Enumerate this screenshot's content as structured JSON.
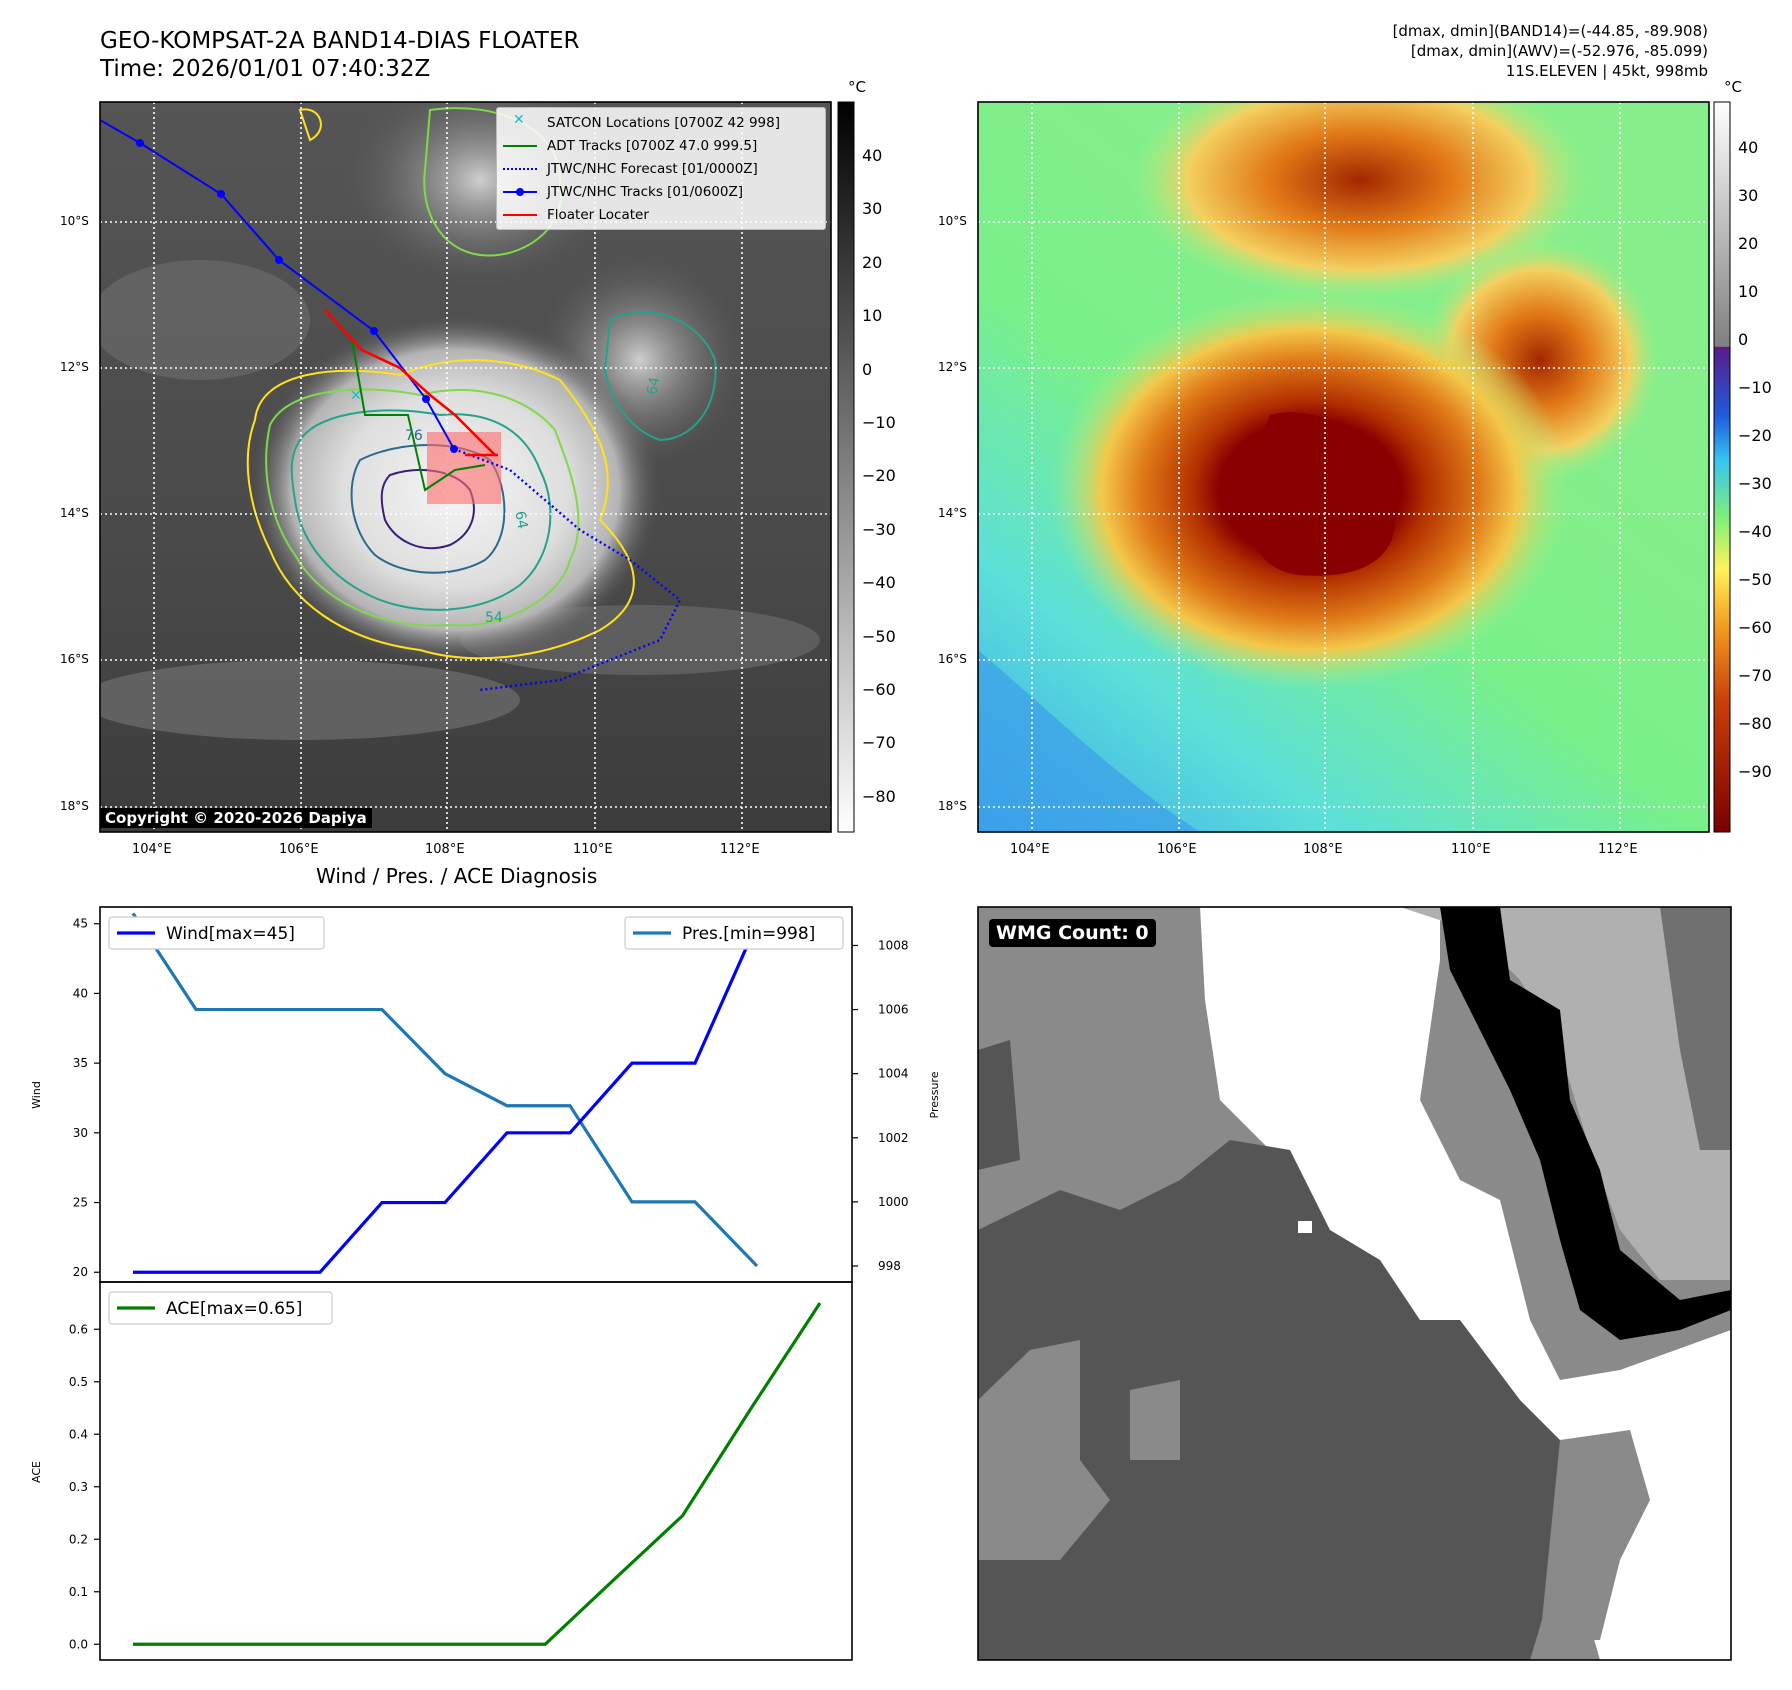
{
  "header": {
    "title": "GEO-KOMPSAT-2A BAND14-DIAS FLOATER",
    "time": "Time: 2026/01/01 07:40:32Z",
    "stats1": "[dmax, dmin](BAND14)=(-44.85, -89.908)",
    "stats2": "[dmax, dmin](AWV)=(-52.976, -85.099)",
    "stats3": "11S.ELEVEN | 45kt, 998mb"
  },
  "copyright": "Copyright © 2020-2026 Dapiya",
  "map": {
    "lon_labels": [
      "104°E",
      "106°E",
      "108°E",
      "110°E",
      "112°E"
    ],
    "lat_labels": [
      "10°S",
      "12°S",
      "14°S",
      "16°S",
      "18°S"
    ],
    "legend": [
      {
        "label": "SATCON Locations [0700Z 42 998]",
        "kind": "x",
        "color": "#17becf"
      },
      {
        "label": "ADT Tracks [0700Z 47.0 999.5]",
        "kind": "line",
        "color": "#008000"
      },
      {
        "label": "JTWC/NHC Forecast [01/0000Z]",
        "kind": "dot",
        "color": "#0000ff"
      },
      {
        "label": "JTWC/NHC Tracks [01/0600Z]",
        "kind": "marker",
        "color": "#0000ff"
      },
      {
        "label": "Floater Locater",
        "kind": "line",
        "color": "#ff0000"
      }
    ],
    "contour_labels": [
      "54",
      "64",
      "76",
      "64",
      "54"
    ]
  },
  "colorbars": {
    "unit": "°C",
    "ir_ticks": [
      "40",
      "30",
      "20",
      "10",
      "0",
      "−10",
      "−20",
      "−30",
      "−40",
      "−50",
      "−60",
      "−70",
      "−80"
    ],
    "enh_ticks": [
      "40",
      "30",
      "20",
      "10",
      "0",
      "−10",
      "−20",
      "−30",
      "−40",
      "−50",
      "−60",
      "−70",
      "−80",
      "−90"
    ]
  },
  "wmg": {
    "label": "WMG Count: 0"
  },
  "chart_data": [
    {
      "type": "line",
      "title": "Wind / Pres. / ACE Diagnosis",
      "xlabel": "",
      "ylabel": "Wind",
      "ylabel_right": "Pressure",
      "series": [
        {
          "name": "Wind[max=45]",
          "axis": "left",
          "color": "#0000ff",
          "values": [
            20,
            20,
            20,
            20,
            25,
            25,
            30,
            30,
            35,
            35,
            45,
            45
          ]
        },
        {
          "name": "Pres.[min=998]",
          "axis": "right",
          "color": "#1f77b4",
          "values": [
            1009,
            1006,
            1006,
            1006,
            1006,
            1004,
            1003,
            1003,
            1000,
            1000,
            998,
            null
          ]
        }
      ],
      "ylim": [
        19.3,
        46.2
      ],
      "ylim_right": [
        997.5,
        1009.2
      ],
      "yticks": [
        20,
        25,
        30,
        35,
        40,
        45
      ],
      "yticks_right": [
        998,
        1000,
        1002,
        1004,
        1006,
        1008
      ],
      "grid": false,
      "legend": "top-left, top-right"
    },
    {
      "type": "line",
      "title": "",
      "xlabel": "",
      "ylabel": "ACE",
      "series": [
        {
          "name": "ACE[max=0.65]",
          "color": "#008000",
          "values": [
            0,
            0,
            0,
            0,
            0,
            0,
            0,
            0.123,
            0.245,
            0.45,
            0.65
          ]
        }
      ],
      "ylim": [
        -0.03,
        0.69
      ],
      "yticks": [
        0.0,
        0.1,
        0.2,
        0.3,
        0.4,
        0.5,
        0.6
      ],
      "grid": false,
      "legend": "top-left"
    }
  ]
}
